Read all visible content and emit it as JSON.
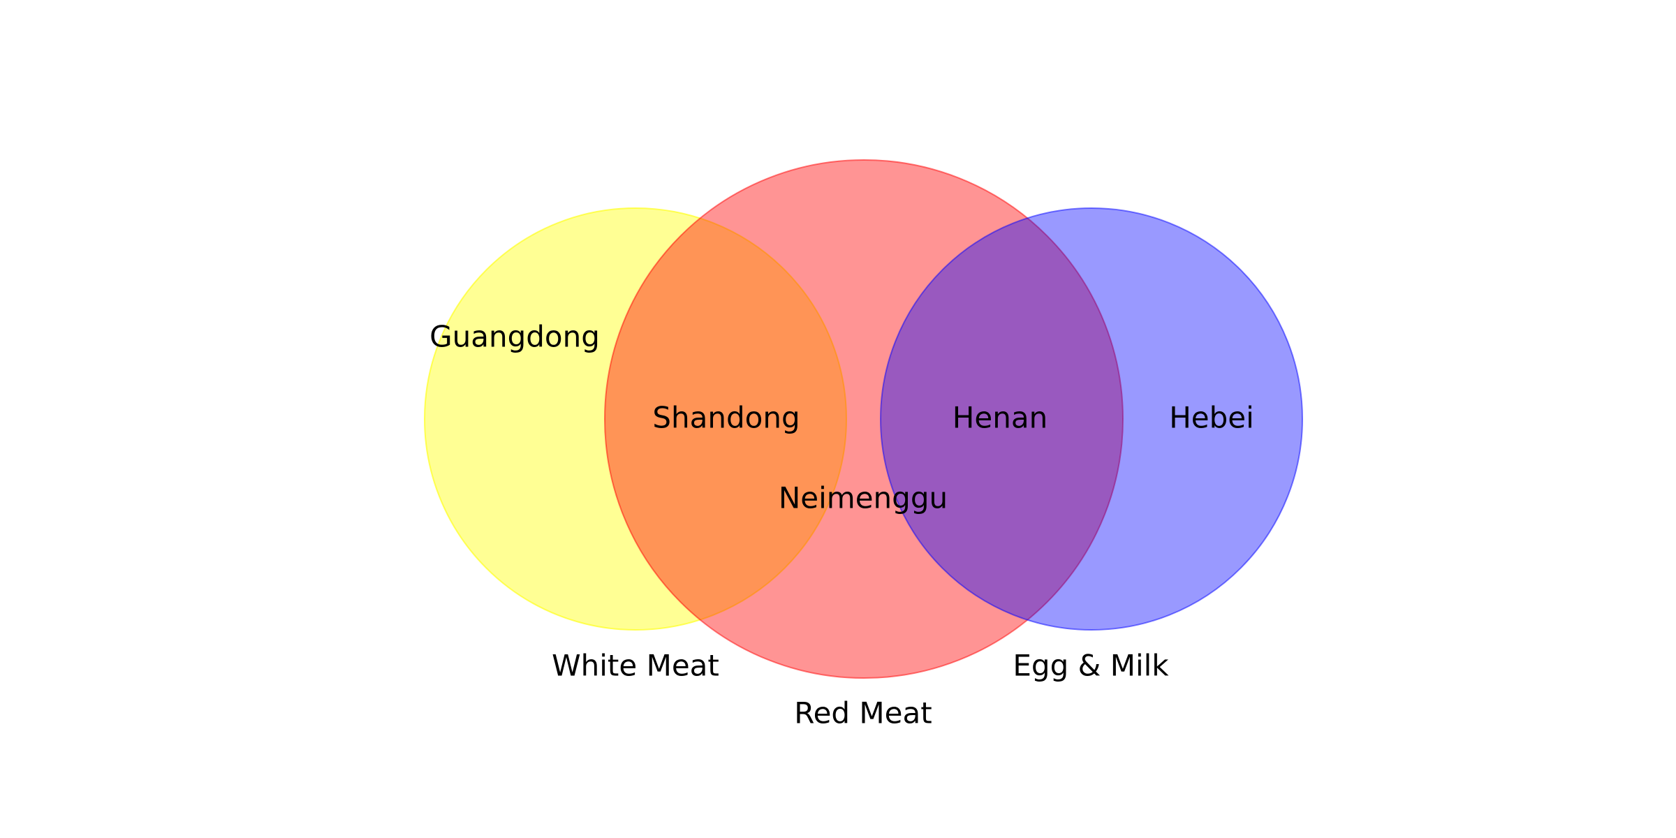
{
  "sets": [
    {
      "label": "White Meat",
      "color": "#ffff00"
    },
    {
      "label": "Red Meat",
      "color": "#ff0000"
    },
    {
      "label": "Egg & Milk",
      "color": "#0000ff"
    }
  ],
  "regions": {
    "white_only": "Guangdong",
    "white_red": "Shandong",
    "red_only": "Neimenggu",
    "red_egg": "Henan",
    "egg_only": "Hebei"
  }
}
